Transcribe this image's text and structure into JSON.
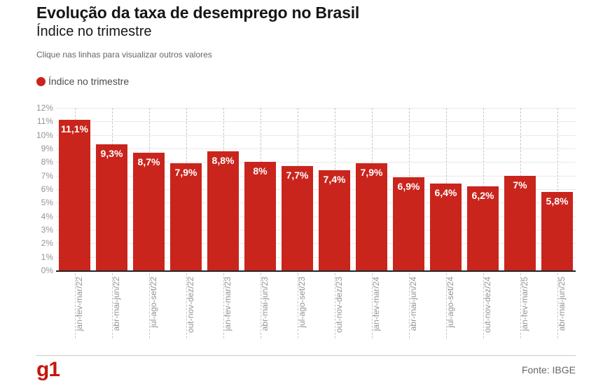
{
  "header": {
    "title": "Evolução da taxa de desemprego no Brasil",
    "subtitle": "Índice no trimestre",
    "note": "Clique nas linhas para visualizar outros valores"
  },
  "legend": {
    "label": "Índice no trimestre"
  },
  "chart_data": {
    "type": "bar",
    "title": "Evolução da taxa de desemprego no Brasil",
    "subtitle": "Índice no trimestre",
    "series_name": "Índice no trimestre",
    "categories": [
      "jan-fev-mar/22",
      "abr-mai-jun/22",
      "jul-ago-set/22",
      "out-nov-dez/22",
      "jan-fev-mar/23",
      "abr-mai-jun/23",
      "jul-ago-set/23",
      "out-nov-dez/23",
      "jan-fev-mar/24",
      "abr-mai-jun/24",
      "jul-ago-set/24",
      "out-nov-dez/24",
      "jan-fev-mar/25",
      "abr-mai-jun/25"
    ],
    "values": [
      11.1,
      9.3,
      8.7,
      7.9,
      8.8,
      8.0,
      7.7,
      7.4,
      7.9,
      6.9,
      6.4,
      6.2,
      7.0,
      5.8
    ],
    "value_labels": [
      "11,1%",
      "9,3%",
      "8,7%",
      "7,9%",
      "8,8%",
      "8%",
      "7,7%",
      "7,4%",
      "7,9%",
      "6,9%",
      "6,4%",
      "6,2%",
      "7%",
      "5,8%"
    ],
    "xlabel": "",
    "ylabel": "",
    "ylim": [
      0,
      12
    ],
    "ytick_labels": [
      "0%",
      "1%",
      "2%",
      "3%",
      "4%",
      "5%",
      "6%",
      "7%",
      "8%",
      "9%",
      "10%",
      "11%",
      "12%"
    ],
    "grid": true,
    "legend_position": "top-left"
  },
  "colors": {
    "bar": "#c9251d",
    "logo_red": "#c4170c",
    "value_label": "#ffffff"
  },
  "footer": {
    "logo": "g1",
    "source": "Fonte: IBGE"
  }
}
